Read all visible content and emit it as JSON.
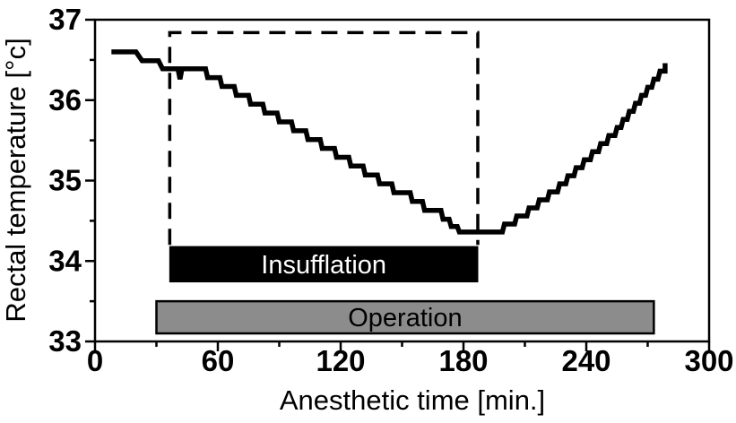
{
  "figure": {
    "background": "#ffffff",
    "line_color": "#000000",
    "operation_bar_fill": "#8c8c8c",
    "insufflation_bar_fill": "#000000"
  },
  "chart_data": {
    "type": "line",
    "title": "",
    "xlabel": "Anesthetic time [min.]",
    "ylabel": "Rectal temperature [°c]",
    "xlim": [
      0,
      300
    ],
    "ylim": [
      33,
      37
    ],
    "x_major_ticks": [
      0,
      60,
      120,
      180,
      240,
      300
    ],
    "x_minor_ticks": [
      30,
      90,
      150,
      210,
      270
    ],
    "y_major_ticks": [
      33,
      34,
      35,
      36,
      37
    ],
    "y_minor_ticks": [
      33.5,
      34.5,
      35.5,
      36.5
    ],
    "grid": false,
    "legend": false,
    "series": [
      {
        "name": "rectal-temperature",
        "color": "#000000",
        "style": "step",
        "points": [
          [
            8,
            36.6
          ],
          [
            20,
            36.6
          ],
          [
            23,
            36.49
          ],
          [
            31,
            36.49
          ],
          [
            33,
            36.39
          ],
          [
            40.5,
            36.39
          ],
          [
            41.5,
            36.26
          ],
          [
            42.5,
            36.39
          ],
          [
            54,
            36.39
          ],
          [
            55,
            36.28
          ],
          [
            61,
            36.28
          ],
          [
            62,
            36.17
          ],
          [
            68,
            36.17
          ],
          [
            69,
            36.06
          ],
          [
            75,
            36.06
          ],
          [
            76,
            35.95
          ],
          [
            82,
            35.95
          ],
          [
            83,
            35.84
          ],
          [
            89,
            35.84
          ],
          [
            90,
            35.73
          ],
          [
            96,
            35.73
          ],
          [
            97,
            35.62
          ],
          [
            103,
            35.62
          ],
          [
            104,
            35.51
          ],
          [
            110,
            35.51
          ],
          [
            111,
            35.4
          ],
          [
            117,
            35.4
          ],
          [
            118,
            35.29
          ],
          [
            124,
            35.29
          ],
          [
            125,
            35.18
          ],
          [
            131,
            35.18
          ],
          [
            132,
            35.07
          ],
          [
            138,
            35.07
          ],
          [
            139,
            34.96
          ],
          [
            145,
            34.96
          ],
          [
            146,
            34.85
          ],
          [
            154,
            34.85
          ],
          [
            155,
            34.74
          ],
          [
            160,
            34.74
          ],
          [
            161,
            34.63
          ],
          [
            169,
            34.63
          ],
          [
            170,
            34.52
          ],
          [
            173,
            34.52
          ],
          [
            174,
            34.43
          ],
          [
            177,
            34.43
          ],
          [
            178,
            34.36
          ],
          [
            199,
            34.36
          ],
          [
            200,
            34.46
          ],
          [
            205,
            34.46
          ],
          [
            206,
            34.56
          ],
          [
            211,
            34.56
          ],
          [
            212,
            34.66
          ],
          [
            216,
            34.66
          ],
          [
            217,
            34.76
          ],
          [
            221,
            34.76
          ],
          [
            222,
            34.86
          ],
          [
            226,
            34.86
          ],
          [
            227,
            34.96
          ],
          [
            230,
            34.96
          ],
          [
            231,
            35.06
          ],
          [
            234,
            35.06
          ],
          [
            235,
            35.16
          ],
          [
            238,
            35.16
          ],
          [
            239,
            35.26
          ],
          [
            242,
            35.26
          ],
          [
            243,
            35.36
          ],
          [
            246,
            35.36
          ],
          [
            247,
            35.46
          ],
          [
            250,
            35.46
          ],
          [
            251,
            35.56
          ],
          [
            254,
            35.56
          ],
          [
            255,
            35.66
          ],
          [
            257,
            35.66
          ],
          [
            258,
            35.76
          ],
          [
            260,
            35.76
          ],
          [
            261,
            35.86
          ],
          [
            263,
            35.86
          ],
          [
            264,
            35.96
          ],
          [
            266,
            35.96
          ],
          [
            267,
            36.06
          ],
          [
            269,
            36.06
          ],
          [
            270,
            36.16
          ],
          [
            272,
            36.16
          ],
          [
            273,
            36.26
          ],
          [
            275,
            36.26
          ],
          [
            276,
            36.36
          ],
          [
            278.5,
            36.36
          ],
          [
            278.5,
            36.46
          ]
        ]
      }
    ],
    "annotations": {
      "dashed_region": {
        "t_start": 36.5,
        "t_end": 187,
        "temp_top": 36.84,
        "temp_bottom": 34.2,
        "color": "#000000"
      },
      "bars": [
        {
          "label": "Insufflation",
          "t_start": 36.5,
          "t_end": 187,
          "temp_top": 34.18,
          "temp_bottom": 33.74,
          "fill": "#000000",
          "text_color": "#ffffff",
          "border": "#000000"
        },
        {
          "label": "Operation",
          "t_start": 30,
          "t_end": 273,
          "temp_top": 33.5,
          "temp_bottom": 33.1,
          "fill": "#8c8c8c",
          "text_color": "#000000",
          "border": "#000000"
        }
      ]
    }
  }
}
